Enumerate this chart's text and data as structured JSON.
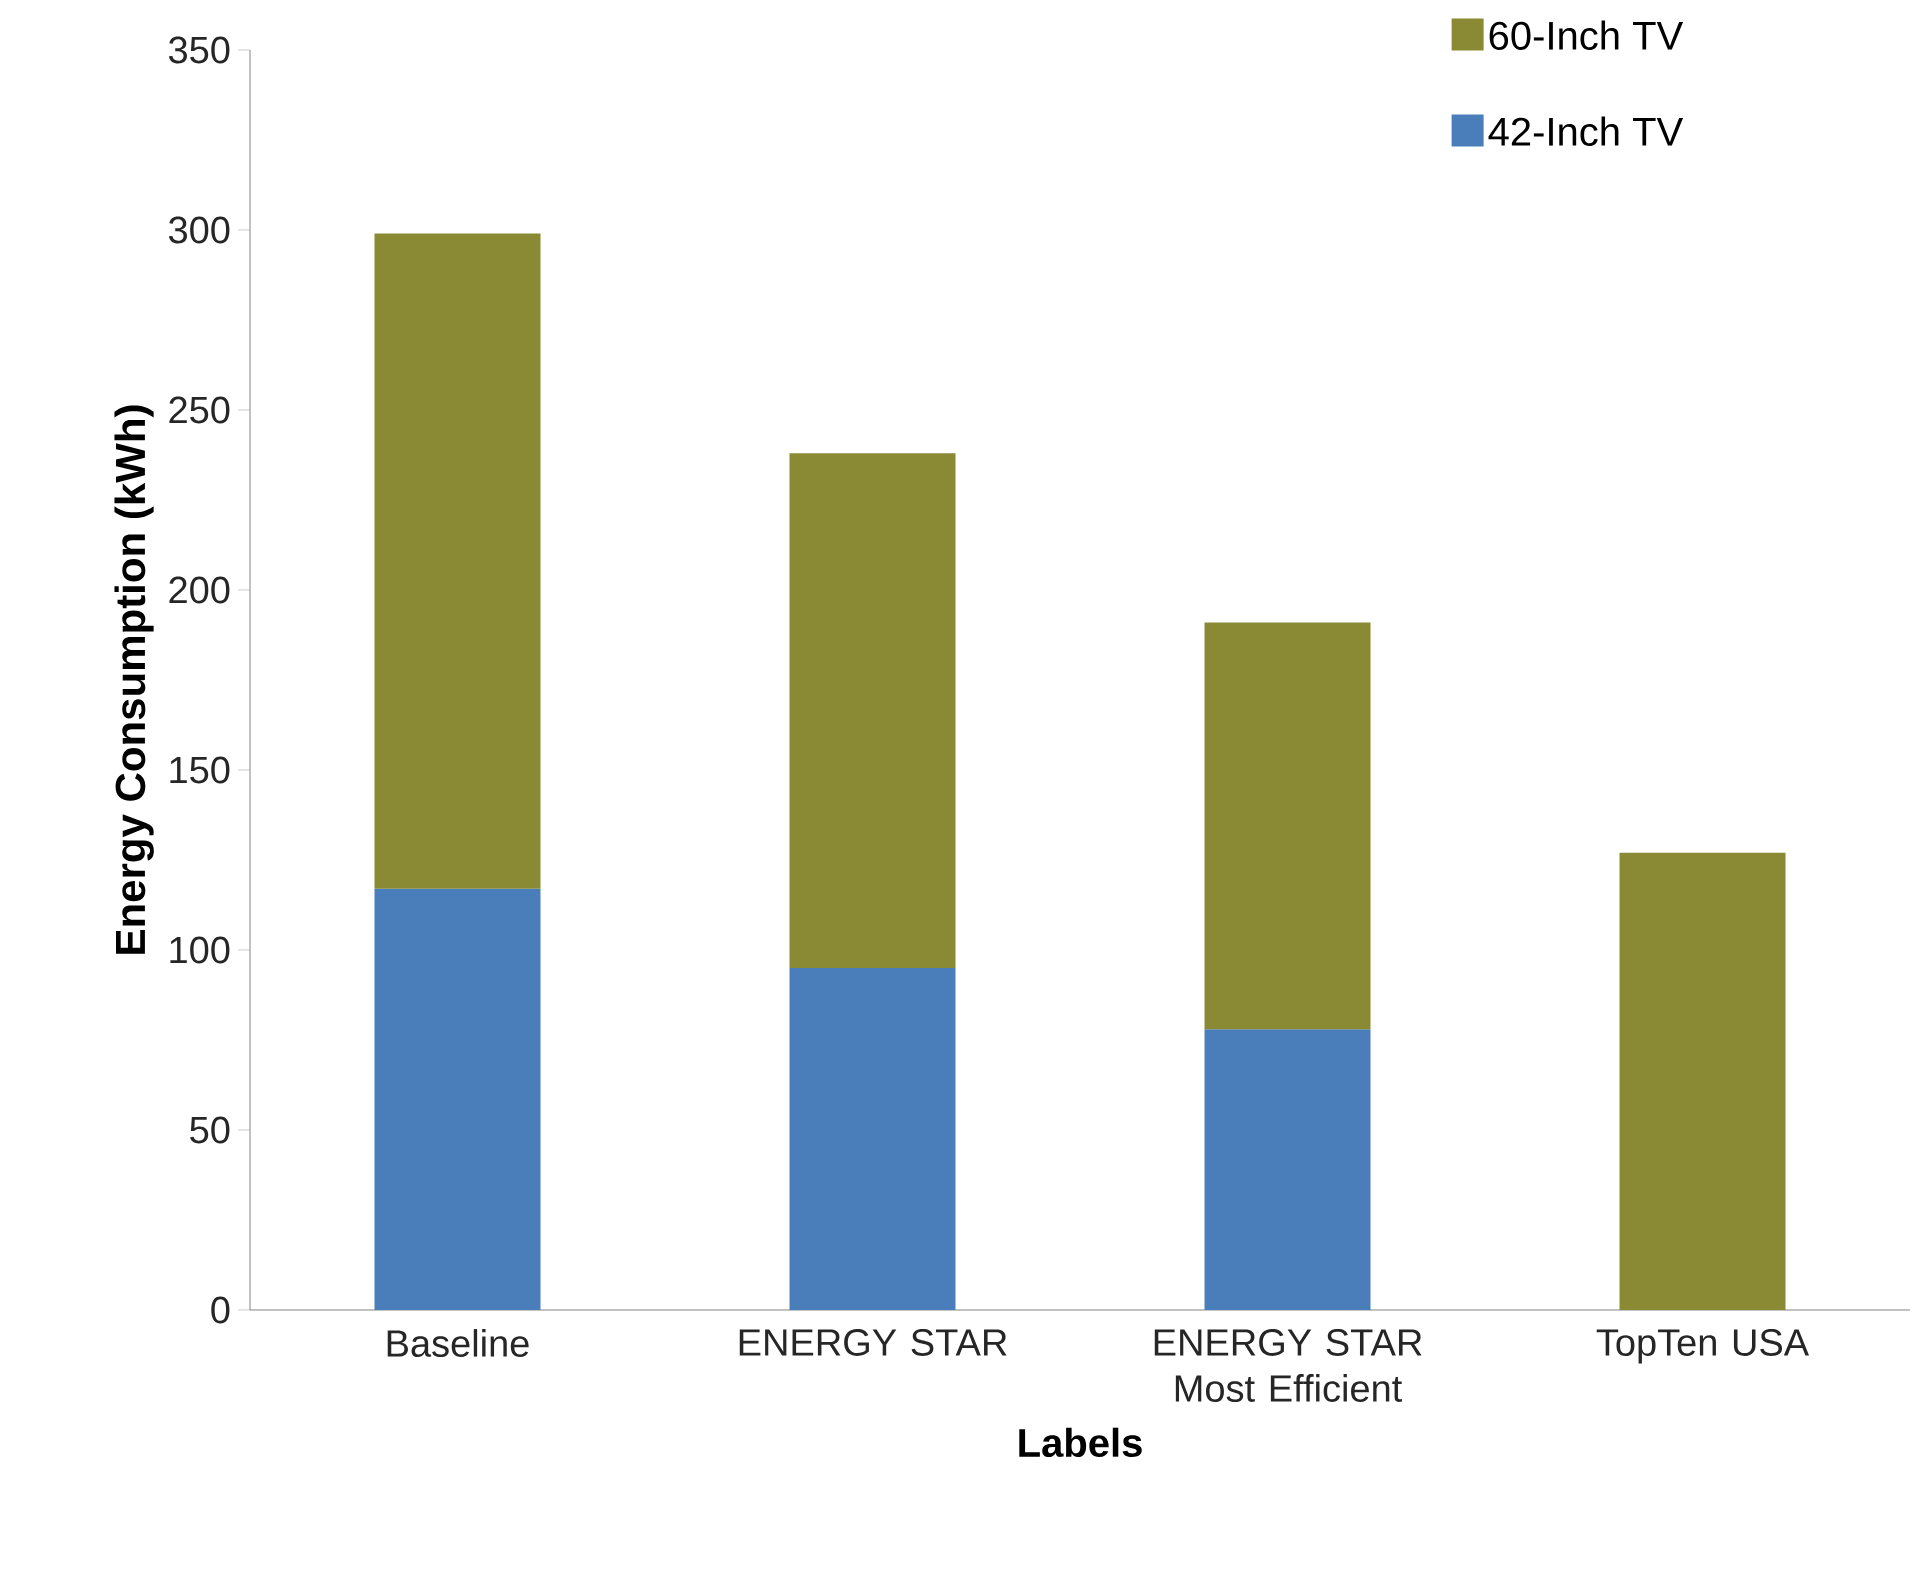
{
  "chart_data": {
    "type": "bar",
    "stacked": true,
    "xlabel": "Labels",
    "ylabel": "Energy Consumption (kWh)",
    "categories": [
      "Baseline",
      "ENERGY STAR",
      "ENERGY STAR Most Efficient",
      "TopTen USA"
    ],
    "series": [
      {
        "name": "42-Inch TV",
        "color": "#4a7ebb",
        "values": [
          117,
          95,
          78,
          null
        ]
      },
      {
        "name": "60-Inch TV",
        "color": "#8a8a35",
        "values": [
          182,
          143,
          113,
          127
        ]
      }
    ],
    "ylim": [
      0,
      350
    ],
    "yticks": [
      0,
      50,
      100,
      150,
      200,
      250,
      300,
      350
    ],
    "legend": "top right"
  }
}
